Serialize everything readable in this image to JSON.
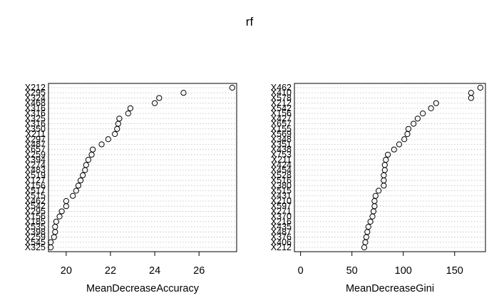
{
  "title": "rf",
  "chart_data": [
    {
      "type": "scatter",
      "variant": "dotchart",
      "xlabel": "MeanDecreaseAccuracy",
      "xticks": [
        20,
        22,
        24,
        26
      ],
      "xlim": [
        19.2,
        27.7
      ],
      "grid": "dotted-horizontal",
      "labels": [
        "X212",
        "X295",
        "X324",
        "X468",
        "X316",
        "X316",
        "X325",
        "X316",
        "X350",
        "X211",
        "X297",
        "X487",
        "X657",
        "X259",
        "X394",
        "X274",
        "X483",
        "X519",
        "X127",
        "X156",
        "X517",
        "X515",
        "X462",
        "X542",
        "X295",
        "X156",
        "X185",
        "X535",
        "X398",
        "X259",
        "X545",
        "X325"
      ],
      "values": [
        27.5,
        25.3,
        24.2,
        24.0,
        22.9,
        22.8,
        22.4,
        22.35,
        22.3,
        22.2,
        21.9,
        21.6,
        21.2,
        21.15,
        21.0,
        20.9,
        20.85,
        20.75,
        20.65,
        20.55,
        20.45,
        20.3,
        20.0,
        20.0,
        19.8,
        19.7,
        19.55,
        19.5,
        19.5,
        19.45,
        19.3,
        19.3
      ]
    },
    {
      "type": "scatter",
      "variant": "dotchart",
      "xlabel": "MeanDecreaseGini",
      "xticks": [
        0,
        50,
        100,
        150
      ],
      "xlim": [
        -6,
        180
      ],
      "grid": "dotted-horizontal",
      "labels": [
        "X462",
        "X410",
        "X578",
        "X212",
        "X542",
        "X156",
        "X427",
        "X657",
        "X155",
        "X569",
        "X348",
        "X351",
        "X438",
        "X753",
        "X211",
        "X424",
        "X454",
        "X528",
        "X516",
        "X380",
        "X515",
        "X431",
        "X210",
        "X597",
        "X271",
        "X370",
        "X216",
        "X435",
        "X487",
        "X376",
        "X406",
        "X212"
      ],
      "values": [
        175,
        166,
        166,
        132,
        127,
        119,
        114,
        110,
        105,
        104,
        101,
        96,
        91,
        85,
        83,
        82,
        82,
        81,
        81,
        81,
        76,
        73,
        72,
        72,
        71,
        70,
        68,
        66,
        65,
        64,
        63,
        62
      ]
    }
  ]
}
